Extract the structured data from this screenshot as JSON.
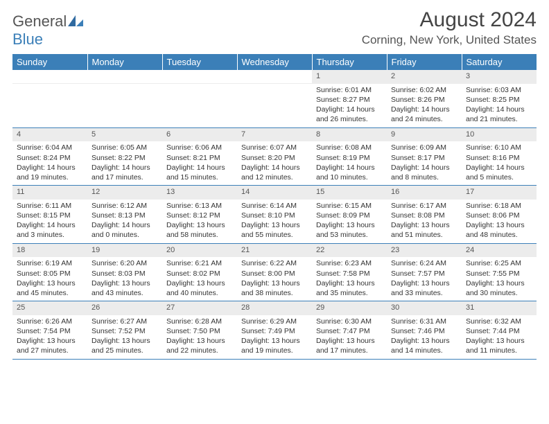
{
  "logo": {
    "text_gray": "General",
    "text_blue": "Blue"
  },
  "header": {
    "title": "August 2024",
    "location": "Corning, New York, United States"
  },
  "colors": {
    "header_bg": "#3b7fb8",
    "header_text": "#ffffff",
    "daynum_bg": "#ececec",
    "rule": "#3b7fb8"
  },
  "day_names": [
    "Sunday",
    "Monday",
    "Tuesday",
    "Wednesday",
    "Thursday",
    "Friday",
    "Saturday"
  ],
  "weeks": [
    [
      null,
      null,
      null,
      null,
      {
        "n": "1",
        "sunrise": "6:01 AM",
        "sunset": "8:27 PM",
        "daylight": "14 hours and 26 minutes."
      },
      {
        "n": "2",
        "sunrise": "6:02 AM",
        "sunset": "8:26 PM",
        "daylight": "14 hours and 24 minutes."
      },
      {
        "n": "3",
        "sunrise": "6:03 AM",
        "sunset": "8:25 PM",
        "daylight": "14 hours and 21 minutes."
      }
    ],
    [
      {
        "n": "4",
        "sunrise": "6:04 AM",
        "sunset": "8:24 PM",
        "daylight": "14 hours and 19 minutes."
      },
      {
        "n": "5",
        "sunrise": "6:05 AM",
        "sunset": "8:22 PM",
        "daylight": "14 hours and 17 minutes."
      },
      {
        "n": "6",
        "sunrise": "6:06 AM",
        "sunset": "8:21 PM",
        "daylight": "14 hours and 15 minutes."
      },
      {
        "n": "7",
        "sunrise": "6:07 AM",
        "sunset": "8:20 PM",
        "daylight": "14 hours and 12 minutes."
      },
      {
        "n": "8",
        "sunrise": "6:08 AM",
        "sunset": "8:19 PM",
        "daylight": "14 hours and 10 minutes."
      },
      {
        "n": "9",
        "sunrise": "6:09 AM",
        "sunset": "8:17 PM",
        "daylight": "14 hours and 8 minutes."
      },
      {
        "n": "10",
        "sunrise": "6:10 AM",
        "sunset": "8:16 PM",
        "daylight": "14 hours and 5 minutes."
      }
    ],
    [
      {
        "n": "11",
        "sunrise": "6:11 AM",
        "sunset": "8:15 PM",
        "daylight": "14 hours and 3 minutes."
      },
      {
        "n": "12",
        "sunrise": "6:12 AM",
        "sunset": "8:13 PM",
        "daylight": "14 hours and 0 minutes."
      },
      {
        "n": "13",
        "sunrise": "6:13 AM",
        "sunset": "8:12 PM",
        "daylight": "13 hours and 58 minutes."
      },
      {
        "n": "14",
        "sunrise": "6:14 AM",
        "sunset": "8:10 PM",
        "daylight": "13 hours and 55 minutes."
      },
      {
        "n": "15",
        "sunrise": "6:15 AM",
        "sunset": "8:09 PM",
        "daylight": "13 hours and 53 minutes."
      },
      {
        "n": "16",
        "sunrise": "6:17 AM",
        "sunset": "8:08 PM",
        "daylight": "13 hours and 51 minutes."
      },
      {
        "n": "17",
        "sunrise": "6:18 AM",
        "sunset": "8:06 PM",
        "daylight": "13 hours and 48 minutes."
      }
    ],
    [
      {
        "n": "18",
        "sunrise": "6:19 AM",
        "sunset": "8:05 PM",
        "daylight": "13 hours and 45 minutes."
      },
      {
        "n": "19",
        "sunrise": "6:20 AM",
        "sunset": "8:03 PM",
        "daylight": "13 hours and 43 minutes."
      },
      {
        "n": "20",
        "sunrise": "6:21 AM",
        "sunset": "8:02 PM",
        "daylight": "13 hours and 40 minutes."
      },
      {
        "n": "21",
        "sunrise": "6:22 AM",
        "sunset": "8:00 PM",
        "daylight": "13 hours and 38 minutes."
      },
      {
        "n": "22",
        "sunrise": "6:23 AM",
        "sunset": "7:58 PM",
        "daylight": "13 hours and 35 minutes."
      },
      {
        "n": "23",
        "sunrise": "6:24 AM",
        "sunset": "7:57 PM",
        "daylight": "13 hours and 33 minutes."
      },
      {
        "n": "24",
        "sunrise": "6:25 AM",
        "sunset": "7:55 PM",
        "daylight": "13 hours and 30 minutes."
      }
    ],
    [
      {
        "n": "25",
        "sunrise": "6:26 AM",
        "sunset": "7:54 PM",
        "daylight": "13 hours and 27 minutes."
      },
      {
        "n": "26",
        "sunrise": "6:27 AM",
        "sunset": "7:52 PM",
        "daylight": "13 hours and 25 minutes."
      },
      {
        "n": "27",
        "sunrise": "6:28 AM",
        "sunset": "7:50 PM",
        "daylight": "13 hours and 22 minutes."
      },
      {
        "n": "28",
        "sunrise": "6:29 AM",
        "sunset": "7:49 PM",
        "daylight": "13 hours and 19 minutes."
      },
      {
        "n": "29",
        "sunrise": "6:30 AM",
        "sunset": "7:47 PM",
        "daylight": "13 hours and 17 minutes."
      },
      {
        "n": "30",
        "sunrise": "6:31 AM",
        "sunset": "7:46 PM",
        "daylight": "13 hours and 14 minutes."
      },
      {
        "n": "31",
        "sunrise": "6:32 AM",
        "sunset": "7:44 PM",
        "daylight": "13 hours and 11 minutes."
      }
    ]
  ],
  "labels": {
    "sunrise": "Sunrise:",
    "sunset": "Sunset:",
    "daylight": "Daylight:"
  }
}
